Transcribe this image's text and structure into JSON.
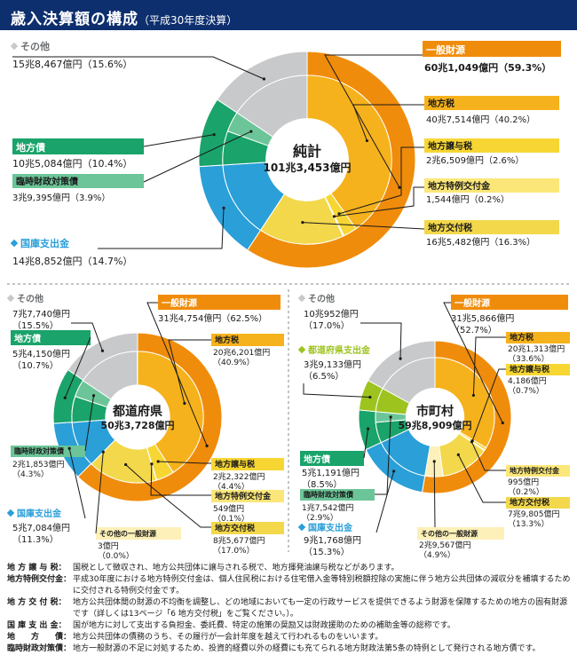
{
  "title": "歳入決算額の構成",
  "subtitle": "（平成30年度決算）",
  "colors": {
    "general": "#f08c0b",
    "tax": "#f6b21c",
    "transfer": "#f7d634",
    "special": "#fbe779",
    "koufu": "#f3d84b",
    "other_general": "#fdf0b8",
    "treasury": "#2a9fd8",
    "bond": "#1aa36a",
    "rinji": "#6cc598",
    "pref_outlay": "#9dc31f",
    "other": "#c7c9ca",
    "navy": "#0d2f6e"
  },
  "chart_data": [
    {
      "type": "pie",
      "name": "total",
      "center_label": "純計",
      "center_value": "101兆3,453億円",
      "outer": [
        {
          "key": "general",
          "value": 59.3
        },
        {
          "key": "treasury",
          "value": 14.7
        },
        {
          "key": "bond",
          "value": 10.4
        },
        {
          "key": "other",
          "value": 15.6
        }
      ],
      "inner": [
        {
          "key": "tax",
          "value": 40.2
        },
        {
          "key": "transfer",
          "value": 2.6
        },
        {
          "key": "special",
          "value": 0.2
        },
        {
          "key": "koufu",
          "value": 16.3
        },
        {
          "key": "treasury",
          "value": 14.7
        },
        {
          "key": "bond",
          "value": 6.5
        },
        {
          "key": "rinji",
          "value": 3.9
        },
        {
          "key": "other",
          "value": 15.6
        }
      ],
      "labels": {
        "general": {
          "name": "一般財源",
          "value": "60兆1,049億円（59.3%）"
        },
        "tax": {
          "name": "地方税",
          "value": "40兆7,514億円（40.2%）"
        },
        "transfer": {
          "name": "地方譲与税",
          "value": "2兆6,509億円（2.6%）"
        },
        "special": {
          "name": "地方特例交付金",
          "value": "1,544億円（0.2%）"
        },
        "koufu": {
          "name": "地方交付税",
          "value": "16兆5,482億円（16.3%）"
        },
        "other": {
          "name": "その他",
          "value": "15兆8,467億円（15.6%）"
        },
        "bond": {
          "name": "地方債",
          "value": "10兆5,084億円（10.4%）"
        },
        "rinji": {
          "name": "臨時財政対策債",
          "value": "3兆9,395億円（3.9%）"
        },
        "treasury": {
          "name": "国庫支出金",
          "value": "14兆8,852億円（14.7%）"
        }
      }
    },
    {
      "type": "pie",
      "name": "prefectures",
      "center_label": "都道府県",
      "center_value": "50兆3,728億円",
      "outer": [
        {
          "key": "general",
          "value": 62.5
        },
        {
          "key": "treasury",
          "value": 11.3
        },
        {
          "key": "bond",
          "value": 10.7
        },
        {
          "key": "other",
          "value": 15.5
        }
      ],
      "inner": [
        {
          "key": "tax",
          "value": 40.9
        },
        {
          "key": "transfer",
          "value": 4.4
        },
        {
          "key": "special",
          "value": 0.1
        },
        {
          "key": "koufu",
          "value": 17.0
        },
        {
          "key": "other_general",
          "value": 0.0
        },
        {
          "key": "treasury",
          "value": 11.3
        },
        {
          "key": "bond",
          "value": 6.4
        },
        {
          "key": "rinji",
          "value": 4.3
        },
        {
          "key": "other",
          "value": 15.5
        }
      ],
      "labels": {
        "other": {
          "name": "その他",
          "value": "7兆7,740億円",
          "pct": "（15.5%）"
        },
        "general": {
          "name": "一般財源",
          "value": "31兆4,754億円（62.5%）"
        },
        "tax": {
          "name": "地方税",
          "value": "20兆6,201億円",
          "pct": "（40.9%）"
        },
        "bond": {
          "name": "地方債",
          "value": "5兆4,150億円",
          "pct": "（10.7%）"
        },
        "rinji": {
          "name": "臨時財政対策債",
          "value": "2兆1,853億円",
          "pct": "（4.3%）"
        },
        "transfer": {
          "name": "地方譲与税",
          "value": "2兆2,322億円",
          "pct": "（4.4%）"
        },
        "special": {
          "name": "地方特例交付金",
          "value": "549億円",
          "pct": "（0.1%）"
        },
        "koufu": {
          "name": "地方交付税",
          "value": "8兆5,677億円",
          "pct": "（17.0%）"
        },
        "treasury": {
          "name": "国庫支出金",
          "value": "5兆7,084億円",
          "pct": "（11.3%）"
        },
        "other_general": {
          "name": "その他の一般財源",
          "value": "3億円",
          "pct": "（0.0%）"
        }
      }
    },
    {
      "type": "pie",
      "name": "municipalities",
      "center_label": "市町村",
      "center_value": "59兆8,909億円",
      "outer": [
        {
          "key": "general",
          "value": 52.7
        },
        {
          "key": "treasury",
          "value": 15.3
        },
        {
          "key": "bond",
          "value": 8.5
        },
        {
          "key": "pref_outlay",
          "value": 6.5
        },
        {
          "key": "other",
          "value": 17.0
        }
      ],
      "inner": [
        {
          "key": "tax",
          "value": 33.6
        },
        {
          "key": "transfer",
          "value": 0.7
        },
        {
          "key": "special",
          "value": 0.2
        },
        {
          "key": "koufu",
          "value": 13.3
        },
        {
          "key": "other_general",
          "value": 4.9
        },
        {
          "key": "treasury",
          "value": 15.3
        },
        {
          "key": "bond",
          "value": 5.6
        },
        {
          "key": "rinji",
          "value": 2.9
        },
        {
          "key": "pref_outlay",
          "value": 6.5
        },
        {
          "key": "other",
          "value": 17.0
        }
      ],
      "labels": {
        "other": {
          "name": "その他",
          "value": "10兆952億円",
          "pct": "（17.0%）"
        },
        "general": {
          "name": "一般財源",
          "value": "31兆5,866億円",
          "pct": "（52.7%）"
        },
        "tax": {
          "name": "地方税",
          "value": "20兆1,313億円",
          "pct": "（33.6%）"
        },
        "transfer": {
          "name": "地方譲与税",
          "value": "4,186億円",
          "pct": "（0.7%）"
        },
        "pref_outlay": {
          "name": "都道府県支出金",
          "value": "3兆9,133億円",
          "pct": "（6.5%）"
        },
        "bond": {
          "name": "地方債",
          "value": "5兆1,191億円",
          "pct": "（8.5%）"
        },
        "rinji": {
          "name": "臨時財政対策債",
          "value": "1兆7,542億円",
          "pct": "（2.9%）"
        },
        "special": {
          "name": "地方特例交付金",
          "value": "995億円",
          "pct": "（0.2%）"
        },
        "koufu": {
          "name": "地方交付税",
          "value": "7兆9,805億円",
          "pct": "（13.3%）"
        },
        "treasury": {
          "name": "国庫支出金",
          "value": "9兆1,768億円",
          "pct": "（15.3%）"
        },
        "other_general": {
          "name": "その他の一般財源",
          "value": "2兆9,567億円",
          "pct": "（4.9%）"
        }
      }
    }
  ],
  "notes": [
    {
      "term": "地 方 譲 与 税：",
      "desc": "国税として徴収され、地方公共団体に譲与される税で、地方揮発油譲与税などがあります。"
    },
    {
      "term": "地方特例交付金：",
      "desc": "平成30年度における地方特例交付金は、個人住民税における住宅借入金等特別税額控除の実施に伴う地方公共団体の減収分を補填するために交付される特例交付金です。"
    },
    {
      "term": "地 方 交 付 税：",
      "desc": "地方公共団体間の財源の不均衡を調整し、どの地域においても一定の行政サービスを提供できるよう財源を保障するための地方の固有財源です（詳しくは13ページ「6 地方交付税」をご覧ください。）。"
    },
    {
      "term": "国 庫 支 出 金：",
      "desc": "国が地方に対して支出する負担金、委託費、特定の施策の奨励又は財政援助のための補助金等の総称です。"
    },
    {
      "term": "地　　方　　債：",
      "desc": "地方公共団体の債務のうち、その履行が一会計年度を越えて行われるものをいいます。"
    },
    {
      "term": "臨時財政対策債：",
      "desc": "地方一般財源の不足に対処するため、投資的経費以外の経費にも充てられる地方財政法第5条の特例として発行される地方債です。"
    }
  ]
}
